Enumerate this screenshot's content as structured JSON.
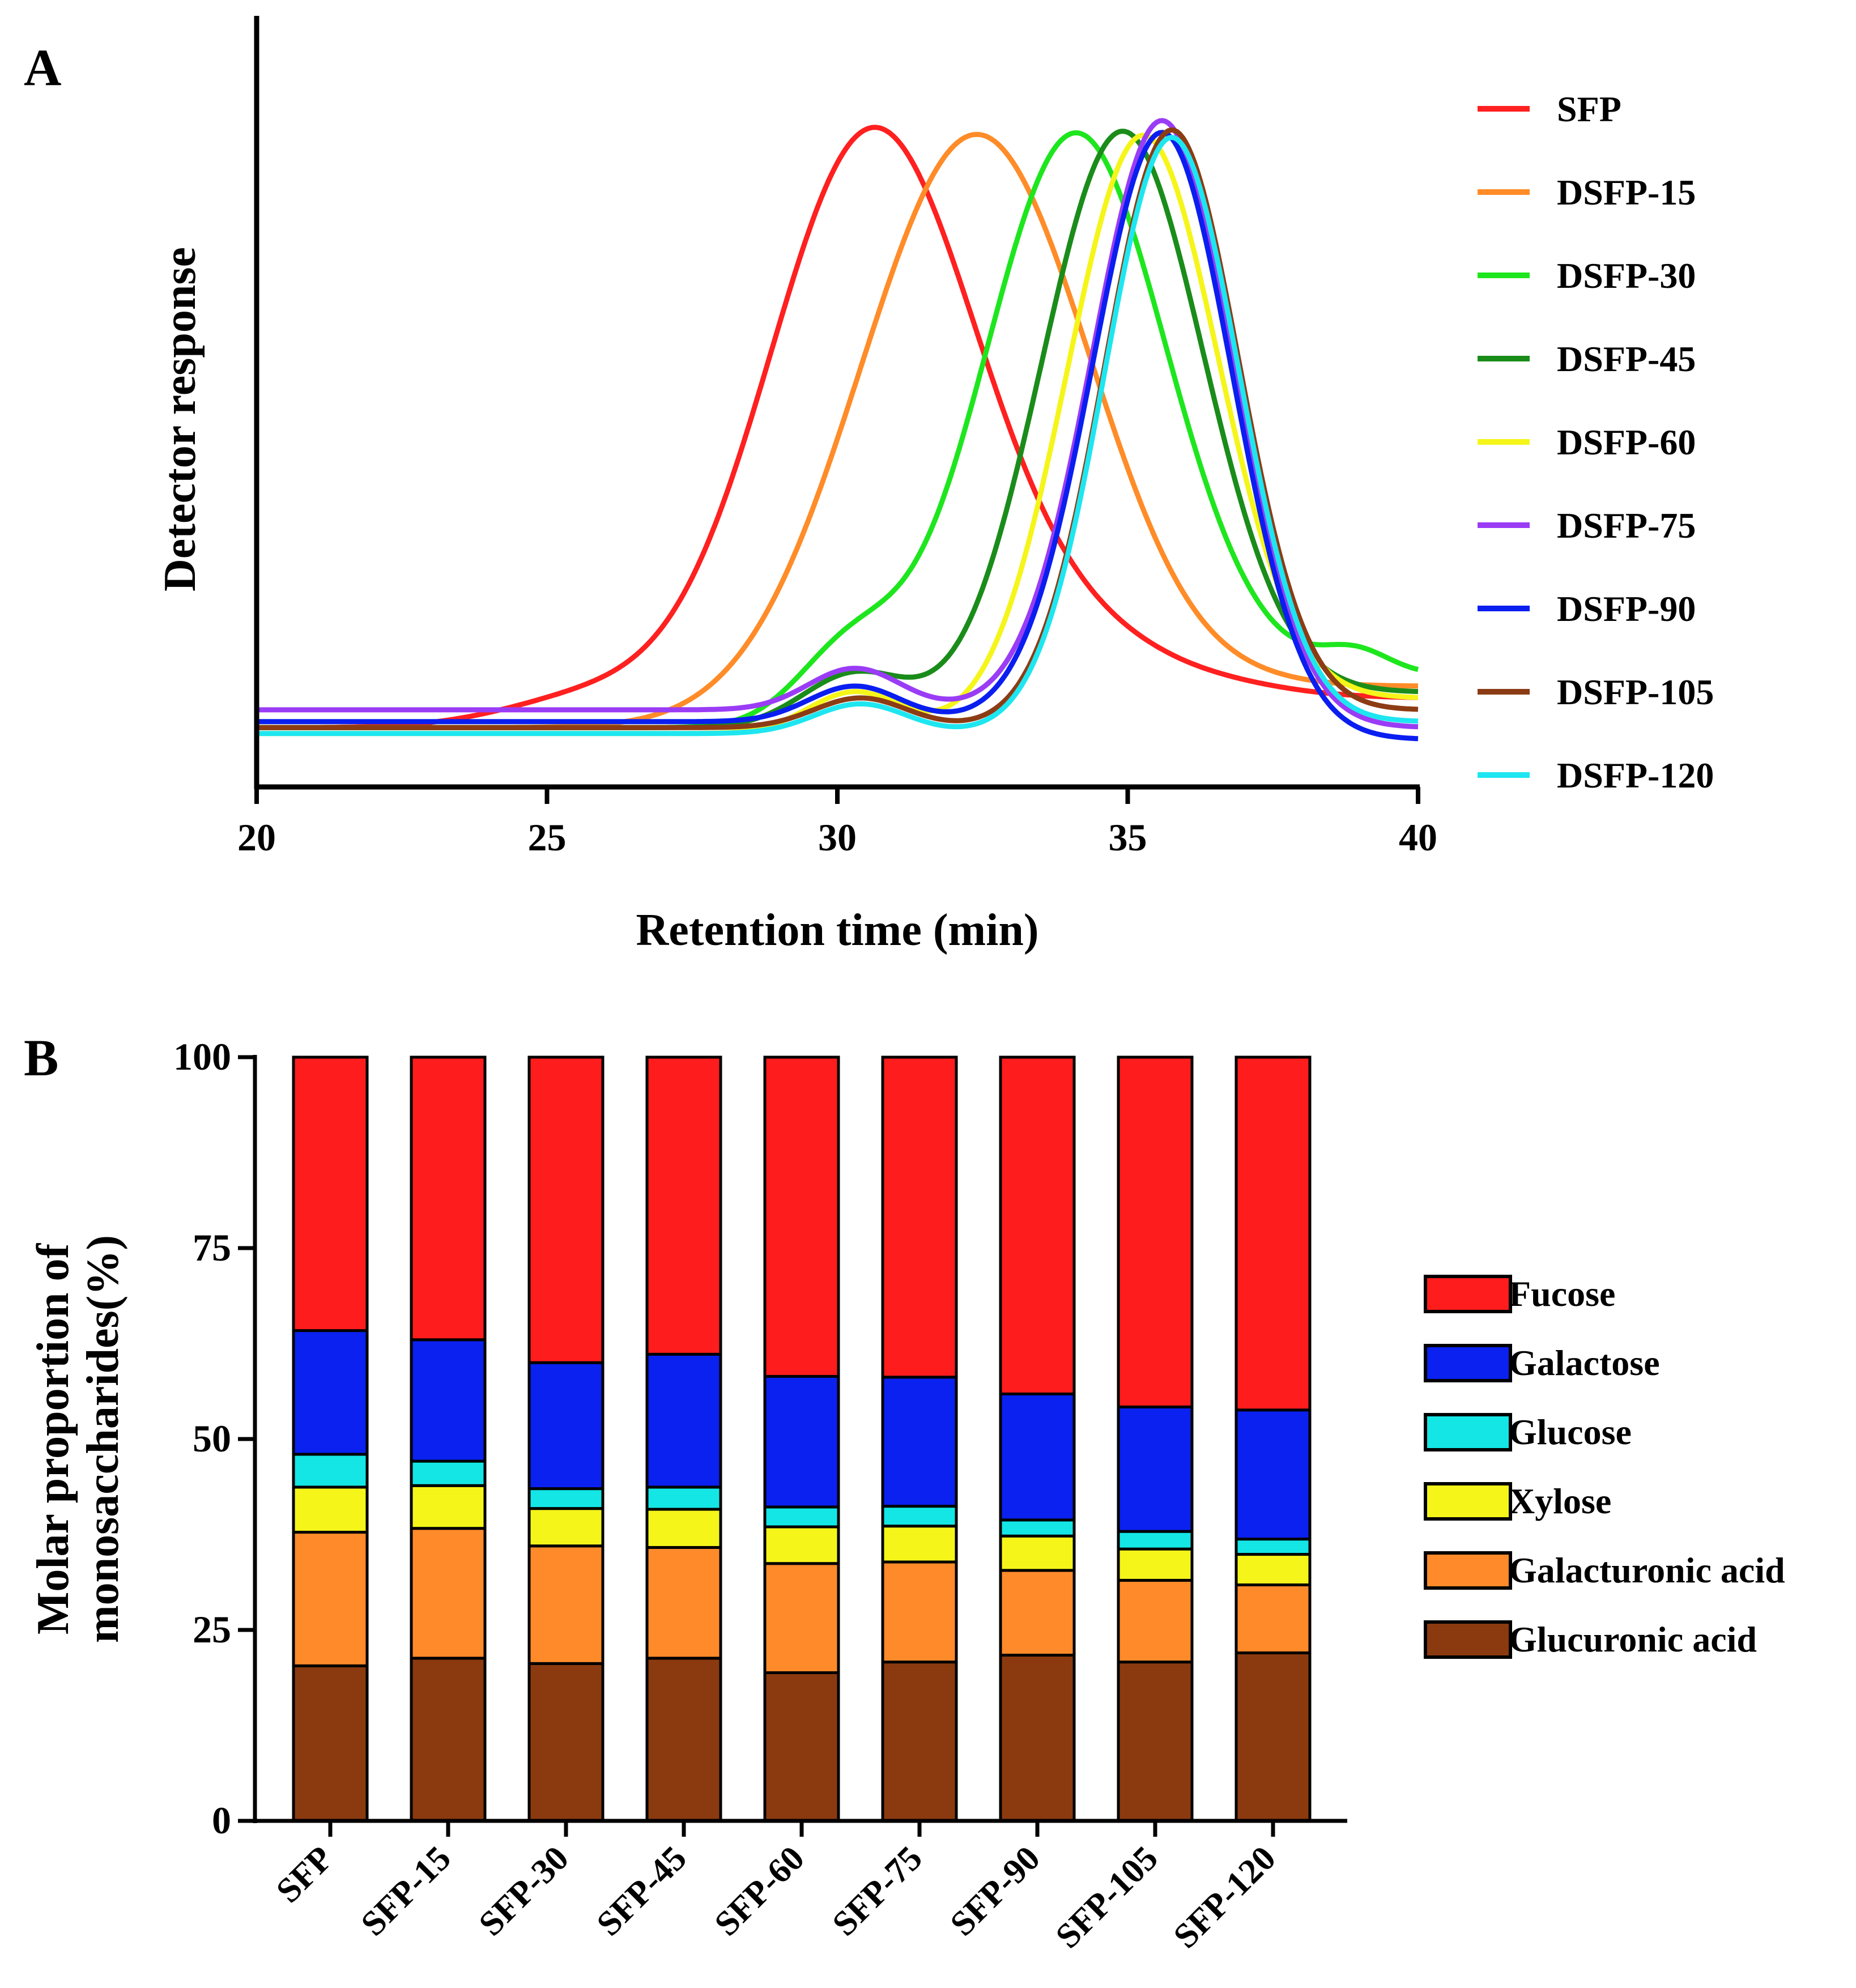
{
  "chart_data": [
    {
      "type": "line",
      "panel": "A",
      "xlabel": "Retention time (min)",
      "ylabel": "Detector response",
      "xlim": [
        20,
        40
      ],
      "ylim": [
        -0.1,
        1.2
      ],
      "x_ticks": [
        20,
        25,
        30,
        35,
        40
      ],
      "legend": "right",
      "series": [
        {
          "name": "SFP",
          "color": "#ff2020",
          "start": 0.0,
          "end": 0.05,
          "peaks": [
            {
              "mu": 30.6,
              "sigma": 1.8,
              "h": 1.0
            },
            {
              "mu": 34.5,
              "sigma": 1.8,
              "h": 0.12
            },
            {
              "mu": 25.8,
              "sigma": 1.5,
              "h": 0.05
            }
          ]
        },
        {
          "name": "DSFP-15",
          "color": "#ff8c28",
          "start": 0.0,
          "end": 0.07,
          "peaks": [
            {
              "mu": 32.4,
              "sigma": 2.0,
              "h": 1.0
            }
          ]
        },
        {
          "name": "DSFP-30",
          "color": "#1ee61e",
          "start": 0.0,
          "end": 0.09,
          "peaks": [
            {
              "mu": 34.1,
              "sigma": 1.6,
              "h": 1.0
            },
            {
              "mu": 30.2,
              "sigma": 0.9,
              "h": 0.12
            },
            {
              "mu": 38.9,
              "sigma": 0.6,
              "h": 0.04
            }
          ]
        },
        {
          "name": "DSFP-45",
          "color": "#1a8c1a",
          "start": 0.0,
          "end": 0.06,
          "peaks": [
            {
              "mu": 34.9,
              "sigma": 1.4,
              "h": 1.0
            },
            {
              "mu": 30.3,
              "sigma": 0.9,
              "h": 0.09
            }
          ]
        },
        {
          "name": "DSFP-60",
          "color": "#f5f51a",
          "start": -0.01,
          "end": 0.05,
          "peaks": [
            {
              "mu": 35.25,
              "sigma": 1.3,
              "h": 1.0
            },
            {
              "mu": 30.3,
              "sigma": 0.8,
              "h": 0.07
            }
          ]
        },
        {
          "name": "DSFP-75",
          "color": "#9a3cf5",
          "start": 0.03,
          "end": 0.0,
          "peaks": [
            {
              "mu": 35.6,
              "sigma": 1.2,
              "h": 1.0
            },
            {
              "mu": 30.3,
              "sigma": 0.8,
              "h": 0.07
            }
          ]
        },
        {
          "name": "DSFP-90",
          "color": "#0a1ef0",
          "start": 0.01,
          "end": -0.02,
          "peaks": [
            {
              "mu": 35.6,
              "sigma": 1.2,
              "h": 1.0
            },
            {
              "mu": 30.3,
              "sigma": 0.8,
              "h": 0.06
            }
          ]
        },
        {
          "name": "DSFP-105",
          "color": "#8c3c14",
          "start": 0.0,
          "end": 0.03,
          "peaks": [
            {
              "mu": 35.75,
              "sigma": 1.15,
              "h": 1.0
            },
            {
              "mu": 30.4,
              "sigma": 0.8,
              "h": 0.05
            }
          ]
        },
        {
          "name": "DSFP-120",
          "color": "#1ee6f0",
          "start": -0.01,
          "end": 0.01,
          "peaks": [
            {
              "mu": 35.75,
              "sigma": 1.15,
              "h": 1.0
            },
            {
              "mu": 30.4,
              "sigma": 0.8,
              "h": 0.05
            }
          ]
        }
      ]
    },
    {
      "type": "bar",
      "stacked": true,
      "panel": "B",
      "ylabel_line1": "Molar proportion of",
      "ylabel_line2": "monosaccharides(%)",
      "ylim": [
        0,
        100
      ],
      "y_ticks": [
        0,
        25,
        50,
        75,
        100
      ],
      "legend": "right",
      "categories": [
        "SFP",
        "SFP-15",
        "SFP-30",
        "SFP-45",
        "SFP-60",
        "SFP-75",
        "SFP-90",
        "SFP-105",
        "SFP-120"
      ],
      "series": [
        {
          "name": "Glucuronic acid",
          "color": "#8b3a0f",
          "values": [
            20.3,
            21.3,
            20.6,
            21.3,
            19.4,
            20.8,
            21.7,
            20.8,
            22.0
          ]
        },
        {
          "name": "Galacturonic acid",
          "color": "#ff8a2a",
          "values": [
            17.5,
            17.0,
            15.4,
            14.5,
            14.3,
            13.1,
            11.1,
            10.7,
            8.9
          ]
        },
        {
          "name": "Xylose",
          "color": "#f5f51a",
          "values": [
            5.9,
            5.6,
            4.9,
            5.0,
            4.8,
            4.7,
            4.5,
            4.1,
            4.0
          ]
        },
        {
          "name": "Glucose",
          "color": "#14e6e6",
          "values": [
            4.3,
            3.2,
            2.6,
            2.9,
            2.6,
            2.6,
            2.1,
            2.3,
            2.0
          ]
        },
        {
          "name": "Galactose",
          "color": "#0a21f0",
          "values": [
            16.2,
            15.9,
            16.5,
            17.4,
            17.1,
            16.9,
            16.5,
            16.3,
            16.9
          ]
        },
        {
          "name": "Fucose",
          "color": "#ff1c1c",
          "values": [
            35.8,
            37.0,
            40.0,
            38.9,
            41.8,
            41.9,
            44.1,
            45.8,
            46.2
          ]
        }
      ]
    }
  ]
}
